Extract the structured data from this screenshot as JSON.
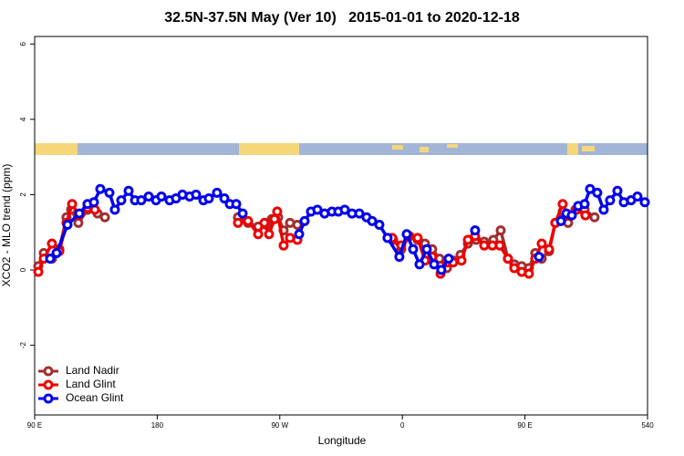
{
  "chart_data": {
    "type": "line",
    "title": "32.5N-37.5N May (Ver 10)   2015-01-01 to 2020-12-18",
    "xlabel": "Longitude",
    "ylabel": "XCO2 - MLO trend (ppm)",
    "xlim": [
      90,
      540
    ],
    "ylim": [
      -3.85,
      6.2
    ],
    "xticks": [
      {
        "value": 90,
        "label": "90 E"
      },
      180,
      {
        "value": 270,
        "label": "90 W"
      },
      {
        "value": 360,
        "label": "0"
      },
      {
        "value": 450,
        "label": "90 E"
      },
      540
    ],
    "yticks": [
      -2,
      0,
      2,
      4,
      6
    ],
    "legend": "lower left",
    "series": [
      {
        "name": "Land Nadir",
        "color": "#a03030",
        "x": [
          92.7,
          96.7,
          102.7,
          108.1,
          113.4,
          116.8,
          122.1,
          128.8,
          136.2,
          141.6,
          null,
          239.3,
          246.7,
          254.1,
          260.1,
          264.1,
          268.8,
          272.8,
          277.5,
          282.9,
          null,
          353.2,
          359.2,
          365.2,
          371.2,
          376.6,
          381.9,
          387.3,
          392.7,
          397.3,
          402.7,
          408.1,
          414.1,
          420.1,
          426.8,
          432.2,
          437.5,
          442.2,
          447.6,
          452.9,
          457.6,
          462.3,
          467.7,
          472.3,
          477.7,
          481.7,
          487.1,
          493.8,
          501.1
        ],
        "values": [
          0.1,
          0.45,
          0.3,
          0.55,
          1.4,
          1.6,
          1.25,
          1.6,
          1.5,
          1.4,
          null,
          1.4,
          1.25,
          1.15,
          1.2,
          1.35,
          1.4,
          1.05,
          1.25,
          1.2,
          null,
          0.8,
          0.55,
          0.9,
          0.8,
          0.7,
          0.55,
          0.3,
          0.05,
          0.25,
          0.4,
          0.7,
          0.8,
          0.75,
          0.8,
          1.05,
          0.3,
          0.15,
          0.1,
          0.05,
          0.45,
          0.3,
          0.5,
          1.25,
          1.55,
          1.25,
          1.6,
          1.6,
          1.4
        ]
      },
      {
        "name": "Land Glint",
        "color": "#ee0000",
        "x": [
          92.7,
          96.7,
          102.7,
          108.1,
          113.4,
          117.5,
          122.8,
          128.8,
          134.2,
          null,
          239.3,
          246.7,
          254.1,
          258.7,
          262.1,
          266.1,
          268.1,
          272.8,
          277.5,
          282.9,
          null,
          352.5,
          359.2,
          364.5,
          371.2,
          376.6,
          381.9,
          388,
          392.7,
          397.3,
          403.4,
          408.1,
          413.4,
          420.1,
          426.1,
          431.5,
          437.5,
          442.2,
          447.6,
          452.9,
          457.6,
          462.3,
          467.7,
          472.3,
          477.7,
          481.7,
          487.7,
          494.4
        ],
        "values": [
          -0.05,
          0.3,
          0.7,
          0.5,
          1.25,
          1.75,
          1.45,
          1.65,
          1.6,
          null,
          1.25,
          1.3,
          0.95,
          1.25,
          0.95,
          1.35,
          1.55,
          0.65,
          0.85,
          0.8,
          null,
          0.85,
          0.65,
          0.9,
          0.85,
          0.25,
          0.35,
          -0.1,
          0.2,
          0.2,
          0.25,
          0.8,
          0.9,
          0.65,
          0.65,
          0.65,
          0.3,
          0.05,
          -0.05,
          -0.1,
          0.3,
          0.7,
          0.55,
          1.25,
          1.75,
          1.45,
          1.6,
          1.45
        ]
      },
      {
        "name": "Ocean Glint",
        "color": "#0000ee",
        "x": [
          101.4,
          106.1,
          114.1,
          122.8,
          128.8,
          133.5,
          138.2,
          144.9,
          148.9,
          153.6,
          159,
          163.7,
          168.3,
          173.7,
          179.1,
          183.1,
          189.1,
          193.8,
          198.5,
          203.8,
          208.5,
          213.9,
          217.9,
          223.9,
          229.3,
          233.3,
          238,
          242.7,
          null,
          284.2,
          288.2,
          292.9,
          297.6,
          302.9,
          308.3,
          313,
          317.7,
          323,
          328.4,
          333.7,
          337.8,
          343.1,
          349.1,
          357.8,
          363.2,
          367.9,
          372.6,
          377.9,
          383.3,
          388.6,
          394,
          null,
          413.4,
          null,
          460.3,
          null,
          476.4,
          480.4,
          484.4,
          489.1,
          493.8,
          497.8,
          503.1,
          507.8,
          512.5,
          517.9,
          522.6,
          527.9,
          532.6,
          538
        ],
        "values": [
          0.3,
          0.45,
          1.2,
          1.5,
          1.75,
          1.8,
          2.15,
          2.05,
          1.6,
          1.85,
          2.1,
          1.85,
          1.85,
          1.95,
          1.85,
          1.95,
          1.85,
          1.9,
          2.0,
          1.95,
          2.0,
          1.85,
          1.9,
          2.05,
          1.9,
          1.75,
          1.75,
          1.5,
          null,
          0.95,
          1.3,
          1.55,
          1.6,
          1.5,
          1.55,
          1.55,
          1.6,
          1.5,
          1.5,
          1.4,
          1.3,
          1.2,
          0.85,
          0.35,
          0.95,
          0.55,
          0.15,
          0.55,
          0.15,
          0.0,
          0.3,
          null,
          1.05,
          null,
          0.35,
          null,
          1.3,
          1.5,
          1.45,
          1.7,
          1.75,
          2.15,
          2.05,
          1.6,
          1.85,
          2.1,
          1.8,
          1.85,
          1.95,
          1.8
        ]
      }
    ]
  }
}
